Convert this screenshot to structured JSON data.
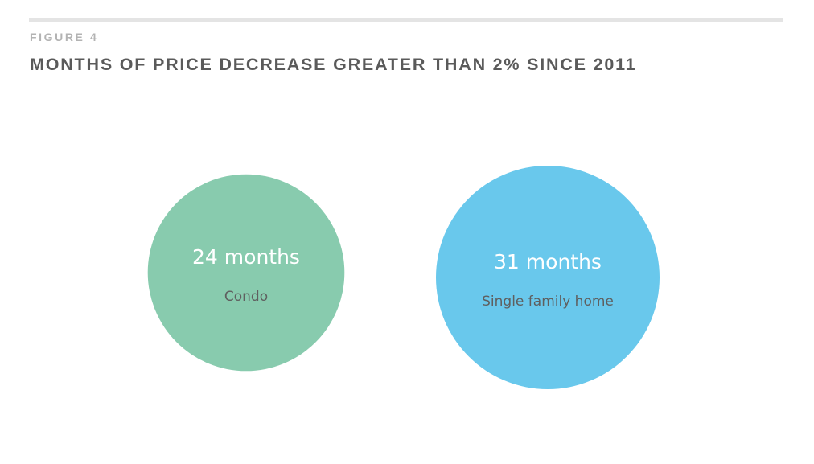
{
  "figure_label": "FIGURE 4",
  "chart_data": {
    "type": "bubble",
    "title": "MONTHS OF PRICE DECREASE GREATER THAN 2% SINCE 2011",
    "unit": "months",
    "items": [
      {
        "category": "Condo",
        "value": 24,
        "value_label": "24 months",
        "color": "#88cbae"
      },
      {
        "category": "Single family home",
        "value": 31,
        "value_label": "31 months",
        "color": "#69c8ec"
      }
    ]
  },
  "colors": {
    "title": "#5a5a5a",
    "figure_label": "#b3b3b3",
    "rule": "#e4e4e4",
    "category_text": "#5f5f5f",
    "value_text": "#ffffff"
  }
}
